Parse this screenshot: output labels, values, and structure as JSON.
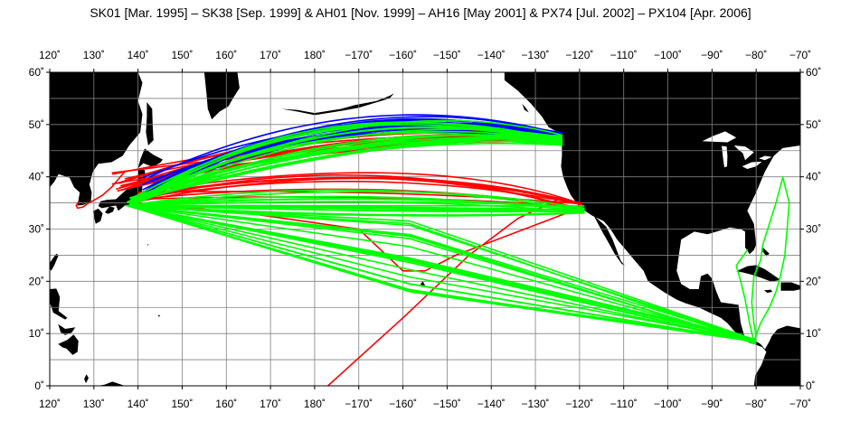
{
  "title": "SK01 [Mar. 1995] – SK38 [Sep. 1999] & AH01 [Nov. 1999] – AH16 [May 2001] & PX74 [Jul. 2002] – PX104 [Apr. 2006]",
  "map": {
    "lon_range": [
      120,
      290
    ],
    "lat_range": [
      0,
      60
    ],
    "lon_ticks": [
      "120˚",
      "130˚",
      "140˚",
      "150˚",
      "160˚",
      "170˚",
      "180˚",
      "−170˚",
      "−160˚",
      "−150˚",
      "−140˚",
      "−130˚",
      "−120˚",
      "−110˚",
      "−100˚",
      "−90˚",
      "−80˚",
      "−70˚"
    ],
    "lat_ticks": [
      "0˚",
      "10˚",
      "20˚",
      "30˚",
      "40˚",
      "50˚",
      "60˚"
    ],
    "grid": true,
    "colors": {
      "ocean": "#ffffff",
      "land": "#000000",
      "grid": "#808080",
      "sk_series": "#ff0000",
      "ah_series": "#0000ff",
      "px_series": "#00ff00"
    }
  }
}
